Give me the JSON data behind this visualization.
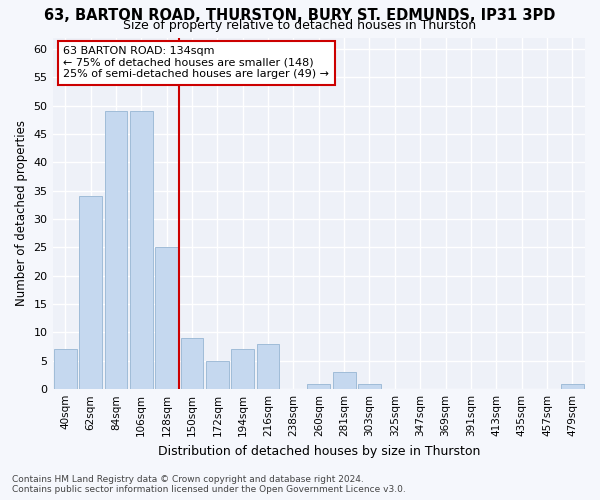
{
  "title": "63, BARTON ROAD, THURSTON, BURY ST. EDMUNDS, IP31 3PD",
  "subtitle": "Size of property relative to detached houses in Thurston",
  "xlabel": "Distribution of detached houses by size in Thurston",
  "ylabel": "Number of detached properties",
  "categories": [
    "40sqm",
    "62sqm",
    "84sqm",
    "106sqm",
    "128sqm",
    "150sqm",
    "172sqm",
    "194sqm",
    "216sqm",
    "238sqm",
    "260sqm",
    "281sqm",
    "303sqm",
    "325sqm",
    "347sqm",
    "369sqm",
    "391sqm",
    "413sqm",
    "435sqm",
    "457sqm",
    "479sqm"
  ],
  "values": [
    7,
    34,
    49,
    49,
    25,
    9,
    5,
    7,
    8,
    0,
    1,
    3,
    1,
    0,
    0,
    0,
    0,
    0,
    0,
    0,
    1
  ],
  "bar_color": "#c5d8ef",
  "bar_edge_color": "#a0bcd8",
  "vline_x_idx": 4,
  "vline_color": "#cc0000",
  "annotation_box_text": "63 BARTON ROAD: 134sqm\n← 75% of detached houses are smaller (148)\n25% of semi-detached houses are larger (49) →",
  "annotation_box_color": "#cc0000",
  "ylim": [
    0,
    62
  ],
  "yticks": [
    0,
    5,
    10,
    15,
    20,
    25,
    30,
    35,
    40,
    45,
    50,
    55,
    60
  ],
  "footer": "Contains HM Land Registry data © Crown copyright and database right 2024.\nContains public sector information licensed under the Open Government Licence v3.0.",
  "bg_color": "#f5f7fc",
  "plot_bg_color": "#eef1f8",
  "grid_color": "#ffffff"
}
